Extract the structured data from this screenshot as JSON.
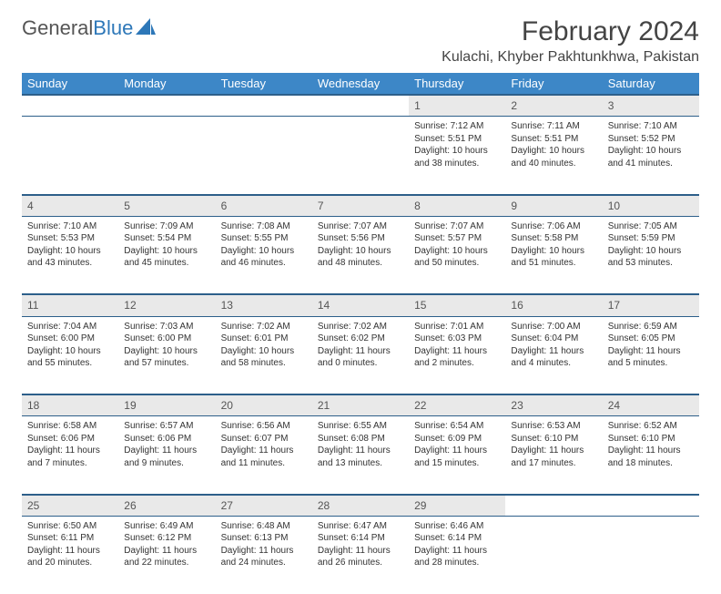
{
  "brand": {
    "part1": "General",
    "part2": "Blue"
  },
  "title": "February 2024",
  "location": "Kulachi, Khyber Pakhtunkhwa, Pakistan",
  "colors": {
    "header_bg": "#3d87c7",
    "header_text": "#ffffff",
    "border": "#2d5f8a",
    "daynum_bg": "#e9e9e9",
    "text": "#333333",
    "brand_gray": "#555555",
    "brand_blue": "#2d77b8"
  },
  "day_headers": [
    "Sunday",
    "Monday",
    "Tuesday",
    "Wednesday",
    "Thursday",
    "Friday",
    "Saturday"
  ],
  "weeks": [
    {
      "nums": [
        "",
        "",
        "",
        "",
        "1",
        "2",
        "3"
      ],
      "cells": [
        {},
        {},
        {},
        {},
        {
          "sunrise": "Sunrise: 7:12 AM",
          "sunset": "Sunset: 5:51 PM",
          "day1": "Daylight: 10 hours",
          "day2": "and 38 minutes."
        },
        {
          "sunrise": "Sunrise: 7:11 AM",
          "sunset": "Sunset: 5:51 PM",
          "day1": "Daylight: 10 hours",
          "day2": "and 40 minutes."
        },
        {
          "sunrise": "Sunrise: 7:10 AM",
          "sunset": "Sunset: 5:52 PM",
          "day1": "Daylight: 10 hours",
          "day2": "and 41 minutes."
        }
      ]
    },
    {
      "nums": [
        "4",
        "5",
        "6",
        "7",
        "8",
        "9",
        "10"
      ],
      "cells": [
        {
          "sunrise": "Sunrise: 7:10 AM",
          "sunset": "Sunset: 5:53 PM",
          "day1": "Daylight: 10 hours",
          "day2": "and 43 minutes."
        },
        {
          "sunrise": "Sunrise: 7:09 AM",
          "sunset": "Sunset: 5:54 PM",
          "day1": "Daylight: 10 hours",
          "day2": "and 45 minutes."
        },
        {
          "sunrise": "Sunrise: 7:08 AM",
          "sunset": "Sunset: 5:55 PM",
          "day1": "Daylight: 10 hours",
          "day2": "and 46 minutes."
        },
        {
          "sunrise": "Sunrise: 7:07 AM",
          "sunset": "Sunset: 5:56 PM",
          "day1": "Daylight: 10 hours",
          "day2": "and 48 minutes."
        },
        {
          "sunrise": "Sunrise: 7:07 AM",
          "sunset": "Sunset: 5:57 PM",
          "day1": "Daylight: 10 hours",
          "day2": "and 50 minutes."
        },
        {
          "sunrise": "Sunrise: 7:06 AM",
          "sunset": "Sunset: 5:58 PM",
          "day1": "Daylight: 10 hours",
          "day2": "and 51 minutes."
        },
        {
          "sunrise": "Sunrise: 7:05 AM",
          "sunset": "Sunset: 5:59 PM",
          "day1": "Daylight: 10 hours",
          "day2": "and 53 minutes."
        }
      ]
    },
    {
      "nums": [
        "11",
        "12",
        "13",
        "14",
        "15",
        "16",
        "17"
      ],
      "cells": [
        {
          "sunrise": "Sunrise: 7:04 AM",
          "sunset": "Sunset: 6:00 PM",
          "day1": "Daylight: 10 hours",
          "day2": "and 55 minutes."
        },
        {
          "sunrise": "Sunrise: 7:03 AM",
          "sunset": "Sunset: 6:00 PM",
          "day1": "Daylight: 10 hours",
          "day2": "and 57 minutes."
        },
        {
          "sunrise": "Sunrise: 7:02 AM",
          "sunset": "Sunset: 6:01 PM",
          "day1": "Daylight: 10 hours",
          "day2": "and 58 minutes."
        },
        {
          "sunrise": "Sunrise: 7:02 AM",
          "sunset": "Sunset: 6:02 PM",
          "day1": "Daylight: 11 hours",
          "day2": "and 0 minutes."
        },
        {
          "sunrise": "Sunrise: 7:01 AM",
          "sunset": "Sunset: 6:03 PM",
          "day1": "Daylight: 11 hours",
          "day2": "and 2 minutes."
        },
        {
          "sunrise": "Sunrise: 7:00 AM",
          "sunset": "Sunset: 6:04 PM",
          "day1": "Daylight: 11 hours",
          "day2": "and 4 minutes."
        },
        {
          "sunrise": "Sunrise: 6:59 AM",
          "sunset": "Sunset: 6:05 PM",
          "day1": "Daylight: 11 hours",
          "day2": "and 5 minutes."
        }
      ]
    },
    {
      "nums": [
        "18",
        "19",
        "20",
        "21",
        "22",
        "23",
        "24"
      ],
      "cells": [
        {
          "sunrise": "Sunrise: 6:58 AM",
          "sunset": "Sunset: 6:06 PM",
          "day1": "Daylight: 11 hours",
          "day2": "and 7 minutes."
        },
        {
          "sunrise": "Sunrise: 6:57 AM",
          "sunset": "Sunset: 6:06 PM",
          "day1": "Daylight: 11 hours",
          "day2": "and 9 minutes."
        },
        {
          "sunrise": "Sunrise: 6:56 AM",
          "sunset": "Sunset: 6:07 PM",
          "day1": "Daylight: 11 hours",
          "day2": "and 11 minutes."
        },
        {
          "sunrise": "Sunrise: 6:55 AM",
          "sunset": "Sunset: 6:08 PM",
          "day1": "Daylight: 11 hours",
          "day2": "and 13 minutes."
        },
        {
          "sunrise": "Sunrise: 6:54 AM",
          "sunset": "Sunset: 6:09 PM",
          "day1": "Daylight: 11 hours",
          "day2": "and 15 minutes."
        },
        {
          "sunrise": "Sunrise: 6:53 AM",
          "sunset": "Sunset: 6:10 PM",
          "day1": "Daylight: 11 hours",
          "day2": "and 17 minutes."
        },
        {
          "sunrise": "Sunrise: 6:52 AM",
          "sunset": "Sunset: 6:10 PM",
          "day1": "Daylight: 11 hours",
          "day2": "and 18 minutes."
        }
      ]
    },
    {
      "nums": [
        "25",
        "26",
        "27",
        "28",
        "29",
        "",
        ""
      ],
      "cells": [
        {
          "sunrise": "Sunrise: 6:50 AM",
          "sunset": "Sunset: 6:11 PM",
          "day1": "Daylight: 11 hours",
          "day2": "and 20 minutes."
        },
        {
          "sunrise": "Sunrise: 6:49 AM",
          "sunset": "Sunset: 6:12 PM",
          "day1": "Daylight: 11 hours",
          "day2": "and 22 minutes."
        },
        {
          "sunrise": "Sunrise: 6:48 AM",
          "sunset": "Sunset: 6:13 PM",
          "day1": "Daylight: 11 hours",
          "day2": "and 24 minutes."
        },
        {
          "sunrise": "Sunrise: 6:47 AM",
          "sunset": "Sunset: 6:14 PM",
          "day1": "Daylight: 11 hours",
          "day2": "and 26 minutes."
        },
        {
          "sunrise": "Sunrise: 6:46 AM",
          "sunset": "Sunset: 6:14 PM",
          "day1": "Daylight: 11 hours",
          "day2": "and 28 minutes."
        },
        {},
        {}
      ]
    }
  ]
}
